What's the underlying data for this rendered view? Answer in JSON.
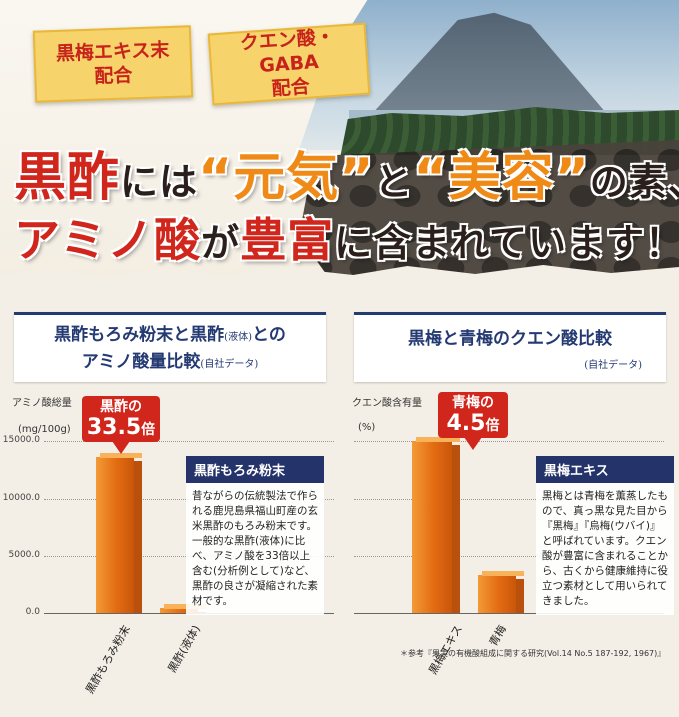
{
  "hero": {
    "tag1": {
      "line1": "黒梅エキス末",
      "line2": "配合"
    },
    "tag2": {
      "line1": "クエン酸・GABA",
      "line2": "配合"
    },
    "headline1": {
      "a": "黒酢",
      "b": "には",
      "c": "“元気”",
      "d": "と",
      "e": "“美容”",
      "f": "の素、"
    },
    "headline2": {
      "a": "アミノ酸",
      "b": "が",
      "c": "豊富",
      "d": "に含まれています！"
    }
  },
  "left": {
    "title_line1": "黒酢もろみ粉末と黒酢",
    "title_small1": "(液体)",
    "title_line1b": "との",
    "title_line2": "アミノ酸量比較",
    "title_note": "(自社データ)",
    "ylabel": "アミノ酸総量",
    "yunit": "(mg/100g)",
    "ticks": [
      "15000.0",
      "10000.0",
      "5000.0",
      "0.0"
    ],
    "burst": {
      "a": "黒酢の",
      "b": "33.5",
      "u": "倍"
    },
    "info_title": "黒酢もろみ粉末",
    "info_body": "昔ながらの伝統製法で作られる鹿児島県福山町産の玄米黒酢のもろみ粉末です。一般的な黒酢(液体)に比べ、アミノ酸を33倍以上含む(分析例として)など、黒酢の良さが凝縮された素材です。"
  },
  "right": {
    "title_line1": "黒梅と青梅のクエン酸比較",
    "title_note": "(自社データ)",
    "ylabel": "クエン酸含有量",
    "yunit": "(%)",
    "burst": {
      "a": "青梅の",
      "b": "4.5",
      "u": "倍"
    },
    "info_title": "黒梅エキス",
    "info_body": "黒梅とは青梅を薫蒸したもので、真っ黒な見た目から『黒梅』『烏梅(ウバイ)』と呼ばれています。クエン酸が豊富に含まれることから、古くから健康維持に役立つ素材として用いられてきました。"
  },
  "chart_data": [
    {
      "type": "bar",
      "title": "黒酢もろみ粉末と黒酢(液体)とのアミノ酸量比較",
      "ylabel": "アミノ酸総量 (mg/100g)",
      "categories": [
        "黒酢もろみ粉末",
        "黒酢(液体)"
      ],
      "values": [
        13600,
        406
      ],
      "ylim": [
        0,
        15000
      ],
      "yticks": [
        0,
        5000,
        10000,
        15000
      ]
    },
    {
      "type": "bar",
      "title": "黒梅と青梅のクエン酸比較",
      "ylabel": "クエン酸含有量 (%)",
      "categories": [
        "黒梅エキス",
        "青梅"
      ],
      "values": [
        15,
        3.3
      ],
      "ylim": [
        0,
        15
      ]
    }
  ],
  "reference": "＊参考『果実の有機酸組成に関する研究(Vol.14 No.5 187-192, 1967)』",
  "colors": {
    "accent_red": "#d0261b",
    "navy": "#243a72",
    "orange": "#e36b12"
  }
}
